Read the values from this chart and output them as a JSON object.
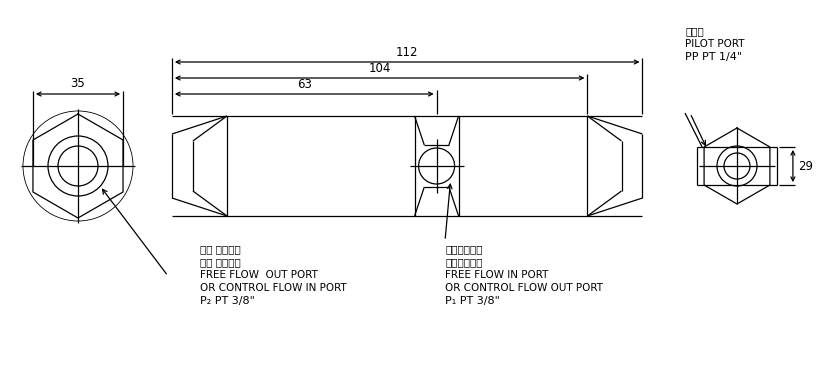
{
  "bg_color": "#ffffff",
  "line_color": "#000000",
  "text_color": "#000000",
  "dim_112": "112",
  "dim_104": "104",
  "dim_63": "63",
  "dim_35": "35",
  "dim_29": "29",
  "label_left_cn1": "自由 油流出口",
  "label_left_cn2": "控制 油流入口",
  "label_left_en1": "FREE FLOW  OUT PORT",
  "label_left_en2": "OR CONTROL FLOW IN PORT",
  "label_left_port": "P₂ PT 3/8\"",
  "label_right_cn1": "自由油流入口",
  "label_right_cn2": "控制油流出口",
  "label_right_en1": "FREE FLOW IN PORT",
  "label_right_en2": "OR CONTROL FLOW OUT PORT",
  "label_right_port": "P₁ PT 3/8\"",
  "label_pilot_cn": "引導口",
  "label_pilot_en": "PILOT PORT",
  "label_pilot_port": "PP PT 1/4\""
}
